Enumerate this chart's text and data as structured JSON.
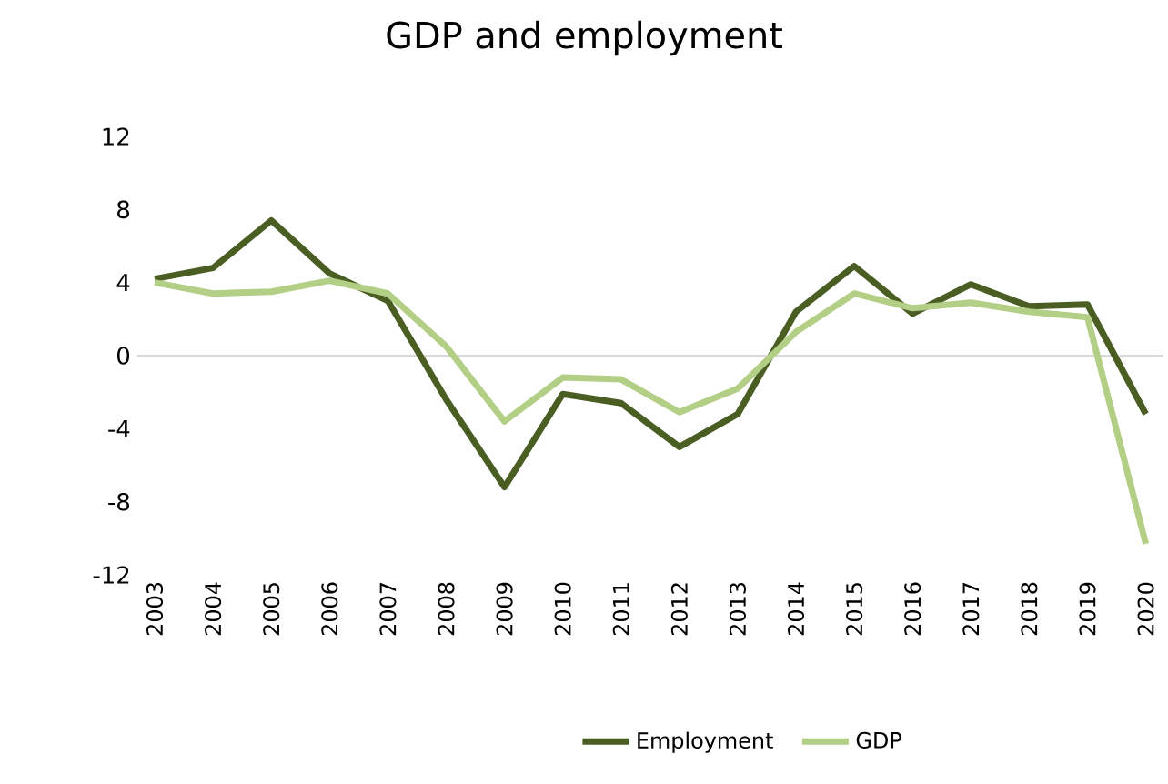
{
  "chart_data": {
    "type": "line",
    "title": "GDP and employment",
    "categories": [
      "2003",
      "2004",
      "2005",
      "2006",
      "2007",
      "2008",
      "2009",
      "2010",
      "2011",
      "2012",
      "2013",
      "2014",
      "2015",
      "2016",
      "2017",
      "2018",
      "2019",
      "2020"
    ],
    "series": [
      {
        "name": "Employment",
        "color": "#4a5e23",
        "values": [
          4.2,
          4.8,
          7.4,
          4.5,
          3.0,
          -2.4,
          -7.2,
          -2.1,
          -2.6,
          -5.0,
          -3.2,
          2.4,
          4.9,
          2.3,
          3.9,
          2.7,
          2.8,
          -3.2
        ]
      },
      {
        "name": "GDP",
        "color": "#b3cf85",
        "values": [
          4.0,
          3.4,
          3.5,
          4.1,
          3.4,
          0.5,
          -3.6,
          -1.2,
          -1.3,
          -3.1,
          -1.8,
          1.3,
          3.4,
          2.6,
          2.9,
          2.4,
          2.1,
          -10.3
        ]
      }
    ],
    "ylim": [
      -12,
      12
    ],
    "yticks": [
      -12,
      -8,
      -4,
      0,
      4,
      8,
      12
    ],
    "grid": false,
    "ref_lines": [
      {
        "axis": "y",
        "value": 0,
        "color": "#d9d9d9"
      }
    ],
    "legend": "bottom",
    "marker": "none",
    "line_style": "solid"
  }
}
